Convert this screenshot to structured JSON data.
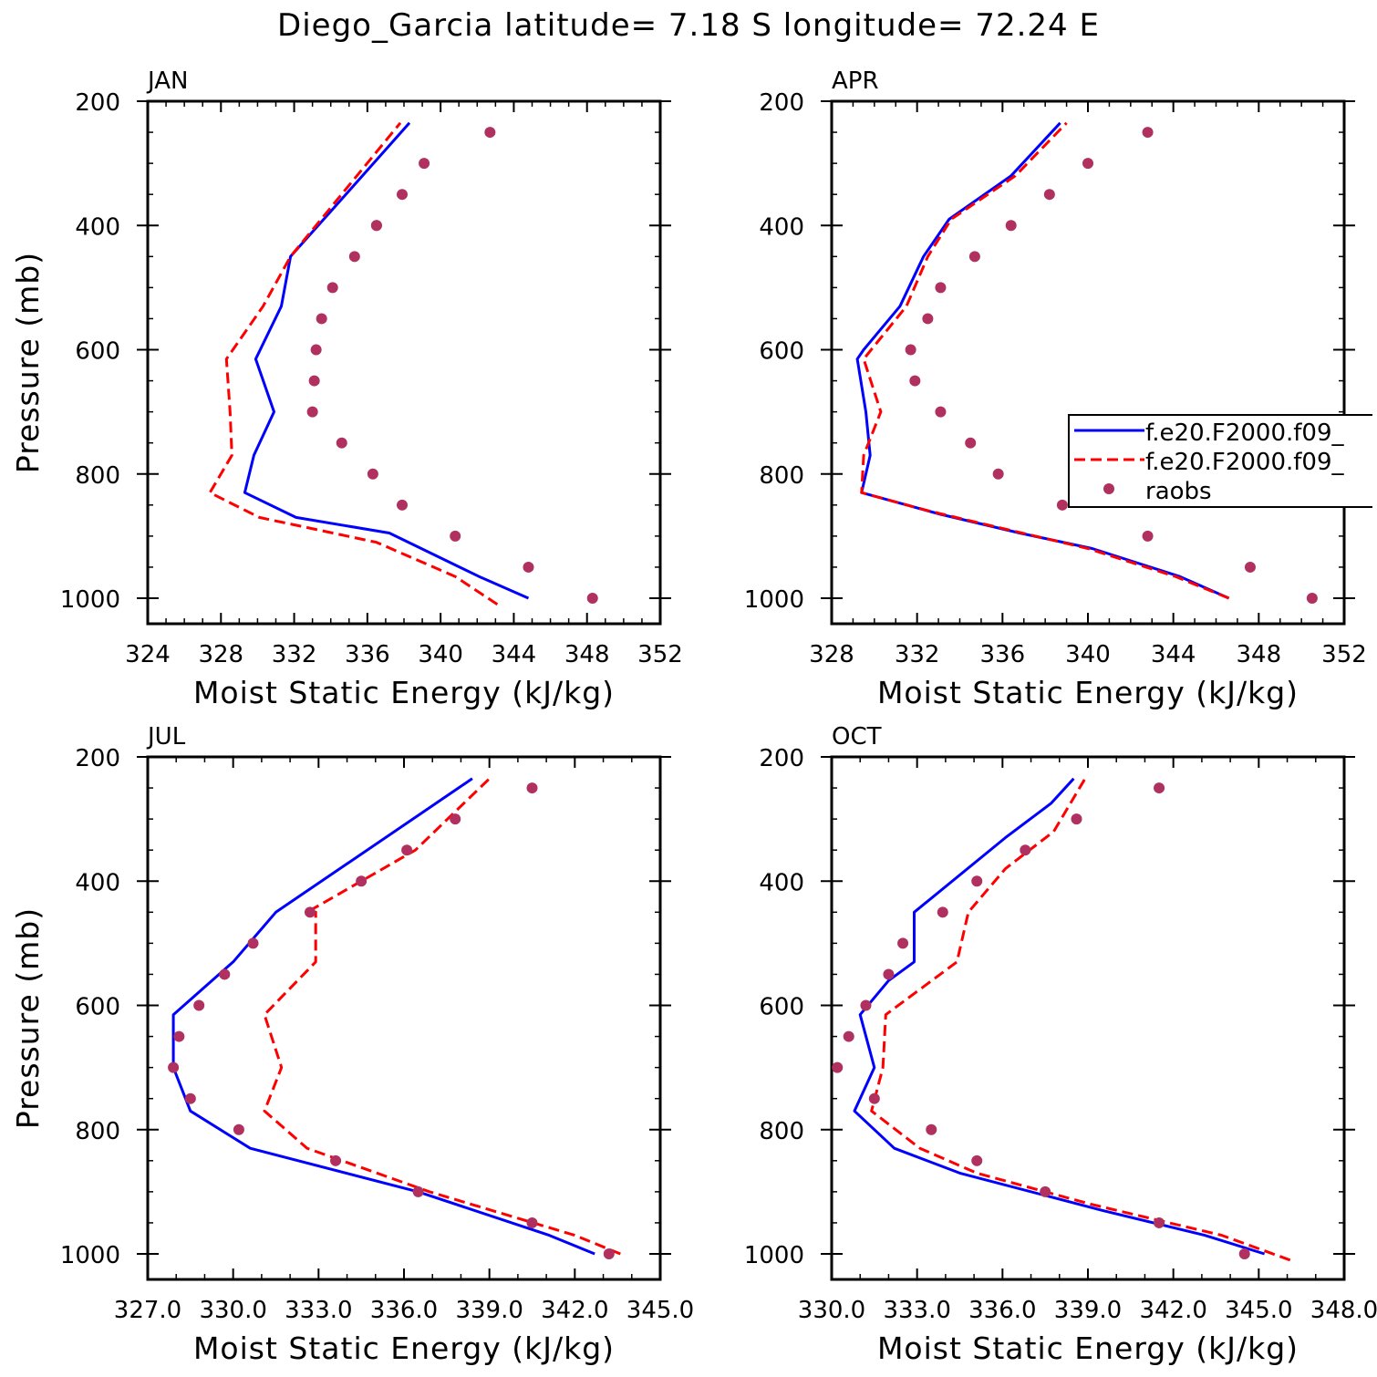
{
  "figure": {
    "title": "Diego_Garcia  latitude= 7.18 S longitude= 72.24 E"
  },
  "colors": {
    "case1": "#0000ff",
    "case2": "#ff0000",
    "raobs": "#b03060",
    "axis": "#000000",
    "background": "#ffffff"
  },
  "legend": {
    "entries": [
      "f.e20.F2000.f09_",
      "f.e20.F2000.f09_",
      "raobs"
    ],
    "placement": "right edge of APR panel, clipped"
  },
  "chart_data": [
    {
      "type": "line",
      "panel": "JAN",
      "title": "JAN",
      "xlabel": "Moist Static Energy (kJ/kg)",
      "ylabel": "Pressure (mb)",
      "xlim": [
        324,
        352
      ],
      "ylim": [
        1000,
        200
      ],
      "y_reversed": true,
      "xticks": [
        324,
        328,
        332,
        336,
        340,
        344,
        348,
        352
      ],
      "xtick_labels": [
        "324",
        "328",
        "332",
        "336",
        "340",
        "344",
        "348",
        "352"
      ],
      "yticks": [
        200,
        400,
        600,
        800,
        1000
      ],
      "ytick_labels": [
        "200",
        "400",
        "600",
        "800",
        "1000"
      ],
      "series": [
        {
          "name": "f.e20.F2000.f09_",
          "style": "solid",
          "x": [
            344.8,
            342.1,
            337.2,
            332.1,
            329.3,
            329.8,
            330.9,
            329.9,
            331.3,
            331.8,
            338.3
          ],
          "y": [
            1000,
            965,
            895,
            870,
            830,
            770,
            700,
            615,
            530,
            450,
            235
          ]
        },
        {
          "name": "f.e20.F2000.f09_",
          "style": "dashed",
          "x": [
            343.1,
            340.8,
            336.5,
            330.1,
            327.4,
            328.6,
            328.5,
            328.3,
            330.3,
            331.8,
            337.8
          ],
          "y": [
            1010,
            965,
            910,
            870,
            830,
            770,
            700,
            615,
            530,
            450,
            235
          ]
        },
        {
          "name": "raobs",
          "style": "markers",
          "x": [
            348.3,
            344.8,
            340.8,
            337.9,
            336.3,
            334.6,
            336.5,
            335.3,
            334.1,
            333.5,
            333.2,
            333.1,
            333.0,
            336.5,
            337.9,
            339.1,
            342.7
          ],
          "y": [
            1000,
            950,
            900,
            850,
            800,
            750,
            400,
            450,
            500,
            550,
            600,
            650,
            700,
            400,
            350,
            300,
            250
          ]
        }
      ]
    },
    {
      "type": "line",
      "panel": "APR",
      "title": "APR",
      "xlabel": "Moist Static Energy (kJ/kg)",
      "ylabel": "",
      "xlim": [
        328,
        352
      ],
      "ylim": [
        1000,
        200
      ],
      "y_reversed": true,
      "xticks": [
        328,
        332,
        336,
        340,
        344,
        348,
        352
      ],
      "xtick_labels": [
        "328",
        "332",
        "336",
        "340",
        "344",
        "348",
        "352"
      ],
      "yticks": [
        200,
        400,
        600,
        800,
        1000
      ],
      "ytick_labels": [
        "200",
        "400",
        "600",
        "800",
        "1000"
      ],
      "series": [
        {
          "name": "f.e20.F2000.f09_",
          "style": "solid",
          "x": [
            346.6,
            344.3,
            340.2,
            336.8,
            333.1,
            329.4,
            329.8,
            329.6,
            329.2,
            329.5,
            331.2,
            332.3,
            333.5,
            336.4,
            338.7
          ],
          "y": [
            1000,
            965,
            920,
            895,
            865,
            830,
            770,
            700,
            615,
            600,
            530,
            450,
            390,
            320,
            235
          ]
        },
        {
          "name": "f.e20.F2000.f09_",
          "style": "dashed",
          "x": [
            346.6,
            344.1,
            340.0,
            336.3,
            332.6,
            329.4,
            329.5,
            330.3,
            329.5,
            331.5,
            332.5,
            333.6,
            336.6,
            339.0
          ],
          "y": [
            1000,
            965,
            920,
            890,
            860,
            830,
            770,
            700,
            615,
            530,
            450,
            390,
            320,
            235
          ]
        },
        {
          "name": "raobs",
          "style": "markers",
          "x": [
            350.5,
            347.6,
            342.8,
            338.8,
            335.8,
            334.5,
            333.1,
            331.9,
            331.7,
            332.5,
            333.1,
            334.7,
            336.4,
            338.2,
            340.0,
            342.8
          ],
          "y": [
            1000,
            950,
            900,
            850,
            800,
            750,
            700,
            650,
            600,
            550,
            500,
            450,
            400,
            350,
            300,
            250
          ]
        }
      ]
    },
    {
      "type": "line",
      "panel": "JUL",
      "title": "JUL",
      "xlabel": "Moist Static Energy (kJ/kg)",
      "ylabel": "Pressure (mb)",
      "xlim": [
        327.0,
        345.0
      ],
      "ylim": [
        1000,
        200
      ],
      "y_reversed": true,
      "xticks": [
        327,
        330,
        333,
        336,
        339,
        342,
        345
      ],
      "xtick_labels": [
        "327.0",
        "330.0",
        "333.0",
        "336.0",
        "339.0",
        "342.0",
        "345.0"
      ],
      "yticks": [
        200,
        400,
        600,
        800,
        1000
      ],
      "ytick_labels": [
        "200",
        "400",
        "600",
        "800",
        "1000"
      ],
      "series": [
        {
          "name": "f.e20.F2000.f09_",
          "style": "solid",
          "x": [
            342.7,
            341.1,
            336.5,
            330.6,
            328.5,
            327.9,
            327.9,
            327.9,
            330.0,
            331.5,
            338.4
          ],
          "y": [
            1000,
            970,
            900,
            830,
            770,
            700,
            650,
            615,
            530,
            450,
            235
          ]
        },
        {
          "name": "f.e20.F2000.f09_",
          "style": "dashed",
          "x": [
            343.6,
            342.0,
            336.9,
            332.6,
            331.1,
            331.7,
            331.1,
            332.9,
            332.9,
            332.6,
            336.4,
            339.0
          ],
          "y": [
            1000,
            970,
            900,
            830,
            770,
            700,
            615,
            530,
            450,
            450,
            350,
            235
          ]
        },
        {
          "name": "raobs",
          "style": "markers",
          "x": [
            343.2,
            340.5,
            336.5,
            333.6,
            330.2,
            328.5,
            327.9,
            328.1,
            328.8,
            329.7,
            330.7,
            332.7,
            334.5,
            336.1,
            337.8,
            340.5
          ],
          "y": [
            1000,
            950,
            900,
            850,
            800,
            750,
            700,
            650,
            600,
            550,
            500,
            450,
            400,
            350,
            300,
            250
          ]
        }
      ]
    },
    {
      "type": "line",
      "panel": "OCT",
      "title": "OCT",
      "xlabel": "Moist Static Energy (kJ/kg)",
      "ylabel": "",
      "xlim": [
        330.0,
        348.0
      ],
      "ylim": [
        1000,
        200
      ],
      "y_reversed": true,
      "xticks": [
        330,
        333,
        336,
        339,
        342,
        345,
        348
      ],
      "xtick_labels": [
        "330.0",
        "333.0",
        "336.0",
        "339.0",
        "342.0",
        "345.0",
        "348.0"
      ],
      "yticks": [
        200,
        400,
        600,
        800,
        1000
      ],
      "ytick_labels": [
        "200",
        "400",
        "600",
        "800",
        "1000"
      ],
      "series": [
        {
          "name": "f.e20.F2000.f09_",
          "style": "solid",
          "x": [
            345.2,
            343.1,
            339.5,
            334.5,
            332.2,
            330.8,
            331.5,
            331.0,
            332.0,
            332.9,
            332.9,
            336.1,
            337.7,
            338.5
          ],
          "y": [
            1000,
            970,
            930,
            870,
            830,
            770,
            700,
            615,
            560,
            530,
            450,
            330,
            275,
            235
          ]
        },
        {
          "name": "f.e20.F2000.f09_",
          "style": "dashed",
          "x": [
            346.1,
            343.7,
            339.1,
            335.1,
            333.1,
            331.4,
            331.8,
            331.9,
            334.4,
            334.8,
            336.1,
            337.8,
            338.9
          ],
          "y": [
            1010,
            970,
            920,
            870,
            830,
            770,
            700,
            615,
            530,
            450,
            380,
            320,
            235
          ]
        },
        {
          "name": "raobs",
          "style": "markers",
          "x": [
            344.5,
            341.5,
            337.5,
            335.1,
            333.5,
            331.5,
            330.2,
            330.6,
            331.2,
            332.0,
            332.5,
            333.9,
            335.1,
            336.8,
            338.6,
            341.5
          ],
          "y": [
            1000,
            950,
            900,
            850,
            800,
            750,
            700,
            650,
            600,
            550,
            500,
            450,
            400,
            350,
            300,
            250
          ]
        }
      ]
    }
  ]
}
